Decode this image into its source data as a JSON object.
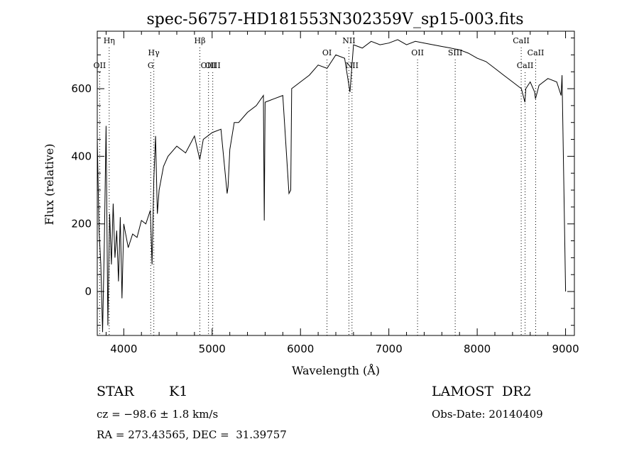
{
  "chart_data": {
    "type": "line",
    "title": "spec-56757-HD181553N302359V_sp15-003.fits",
    "xlabel": "Wavelength (Å)",
    "ylabel": "Flux (relative)",
    "xlim": [
      3700,
      9100
    ],
    "ylim": [
      -130,
      770
    ],
    "xticks": [
      4000,
      5000,
      6000,
      7000,
      8000,
      9000
    ],
    "yticks": [
      0,
      200,
      400,
      600
    ],
    "grid": false,
    "series": [
      {
        "x": [
          3700,
          3720,
          3740,
          3760,
          3780,
          3800,
          3820,
          3840,
          3860,
          3880,
          3900,
          3920,
          3940,
          3960,
          3980,
          4000,
          4050,
          4100,
          4150,
          4200,
          4250,
          4300,
          4320,
          4340,
          4360,
          4380,
          4400,
          4450,
          4500,
          4600,
          4700,
          4800,
          4860,
          4900,
          5000,
          5100,
          5170,
          5180,
          5200,
          5250,
          5300,
          5400,
          5500,
          5580,
          5590,
          5600,
          5700,
          5800,
          5870,
          5890,
          5900,
          6000,
          6100,
          6200,
          6300,
          6400,
          6500,
          6560,
          6600,
          6700,
          6800,
          6900,
          7000,
          7100,
          7200,
          7300,
          7400,
          7500,
          7600,
          7700,
          7800,
          7900,
          8000,
          8100,
          8200,
          8300,
          8400,
          8500,
          8540,
          8550,
          8600,
          8650,
          8660,
          8700,
          8800,
          8900,
          8950,
          8960,
          9000
        ],
        "y": [
          450,
          180,
          80,
          -120,
          150,
          490,
          -100,
          230,
          80,
          260,
          100,
          180,
          30,
          220,
          -20,
          200,
          130,
          170,
          160,
          210,
          200,
          240,
          80,
          330,
          460,
          230,
          300,
          370,
          400,
          430,
          410,
          460,
          390,
          450,
          470,
          480,
          290,
          310,
          420,
          500,
          500,
          530,
          550,
          580,
          210,
          560,
          570,
          580,
          290,
          300,
          600,
          620,
          640,
          670,
          660,
          700,
          690,
          590,
          730,
          720,
          740,
          730,
          735,
          745,
          730,
          740,
          735,
          730,
          725,
          720,
          715,
          705,
          690,
          680,
          660,
          640,
          620,
          600,
          560,
          600,
          620,
          590,
          570,
          610,
          630,
          620,
          580,
          640,
          0
        ]
      }
    ],
    "lines": [
      {
        "label": "Hη",
        "x": 3835,
        "row": 1
      },
      {
        "label": "OII",
        "x": 3727,
        "row": 3
      },
      {
        "label": "Hγ",
        "x": 4340,
        "row": 2
      },
      {
        "label": "G",
        "x": 4305,
        "row": 3
      },
      {
        "label": "Hβ",
        "x": 4861,
        "row": 1
      },
      {
        "label": "OIII",
        "x": 4959,
        "row": 3
      },
      {
        "label": "OIII",
        "x": 5007,
        "row": 3
      },
      {
        "label": "OI",
        "x": 6300,
        "row": 2
      },
      {
        "label": "NII",
        "x": 6548,
        "row": 1
      },
      {
        "label": "NII",
        "x": 6583,
        "row": 3
      },
      {
        "label": "OII",
        "x": 7325,
        "row": 2
      },
      {
        "label": "SIII",
        "x": 7751,
        "row": 2
      },
      {
        "label": "CaII",
        "x": 8498,
        "row": 1
      },
      {
        "label": "CaII",
        "x": 8542,
        "row": 3
      },
      {
        "label": "CaII",
        "x": 8662,
        "row": 2
      }
    ]
  },
  "info": {
    "object_class": "STAR",
    "subclass": "K1",
    "cz": "cz = −98.6 ± 1.8 km/s",
    "coords": "RA = 273.43565, DEC =  31.39757",
    "survey": "LAMOST  DR2",
    "obs_date": "Obs-Date: 20140409"
  }
}
